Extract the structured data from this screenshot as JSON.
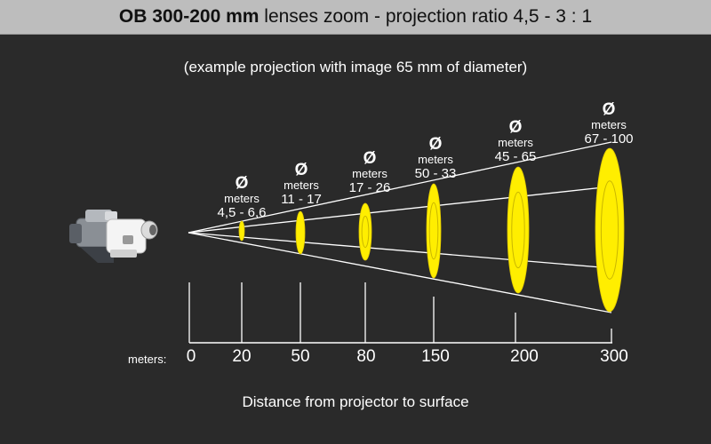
{
  "header": {
    "title_bold": "OB 300-200 mm",
    "title_rest": " lenses zoom - projection ratio 4,5 - 3 : 1"
  },
  "subtitle": "(example projection with image 65 mm of diameter)",
  "caption": "Distance from projector to surface",
  "axis": {
    "unit_label": "meters:",
    "origin": "0",
    "ticks": [
      "20",
      "50",
      "80",
      "150",
      "200",
      "300"
    ]
  },
  "labels": {
    "diameter_symbol": "Ø",
    "unit": "meters",
    "ranges": [
      "4,5 - 6,6",
      "11 - 17",
      "17 - 26",
      "50 - 33",
      "45 - 65",
      "67 - 100"
    ]
  },
  "colors": {
    "background": "#2a2a2a",
    "title_bar": "#bdbdbd",
    "beam": "#ffffff",
    "ellipse": "#ffee00"
  },
  "icons": {
    "projector": "projector-icon"
  }
}
